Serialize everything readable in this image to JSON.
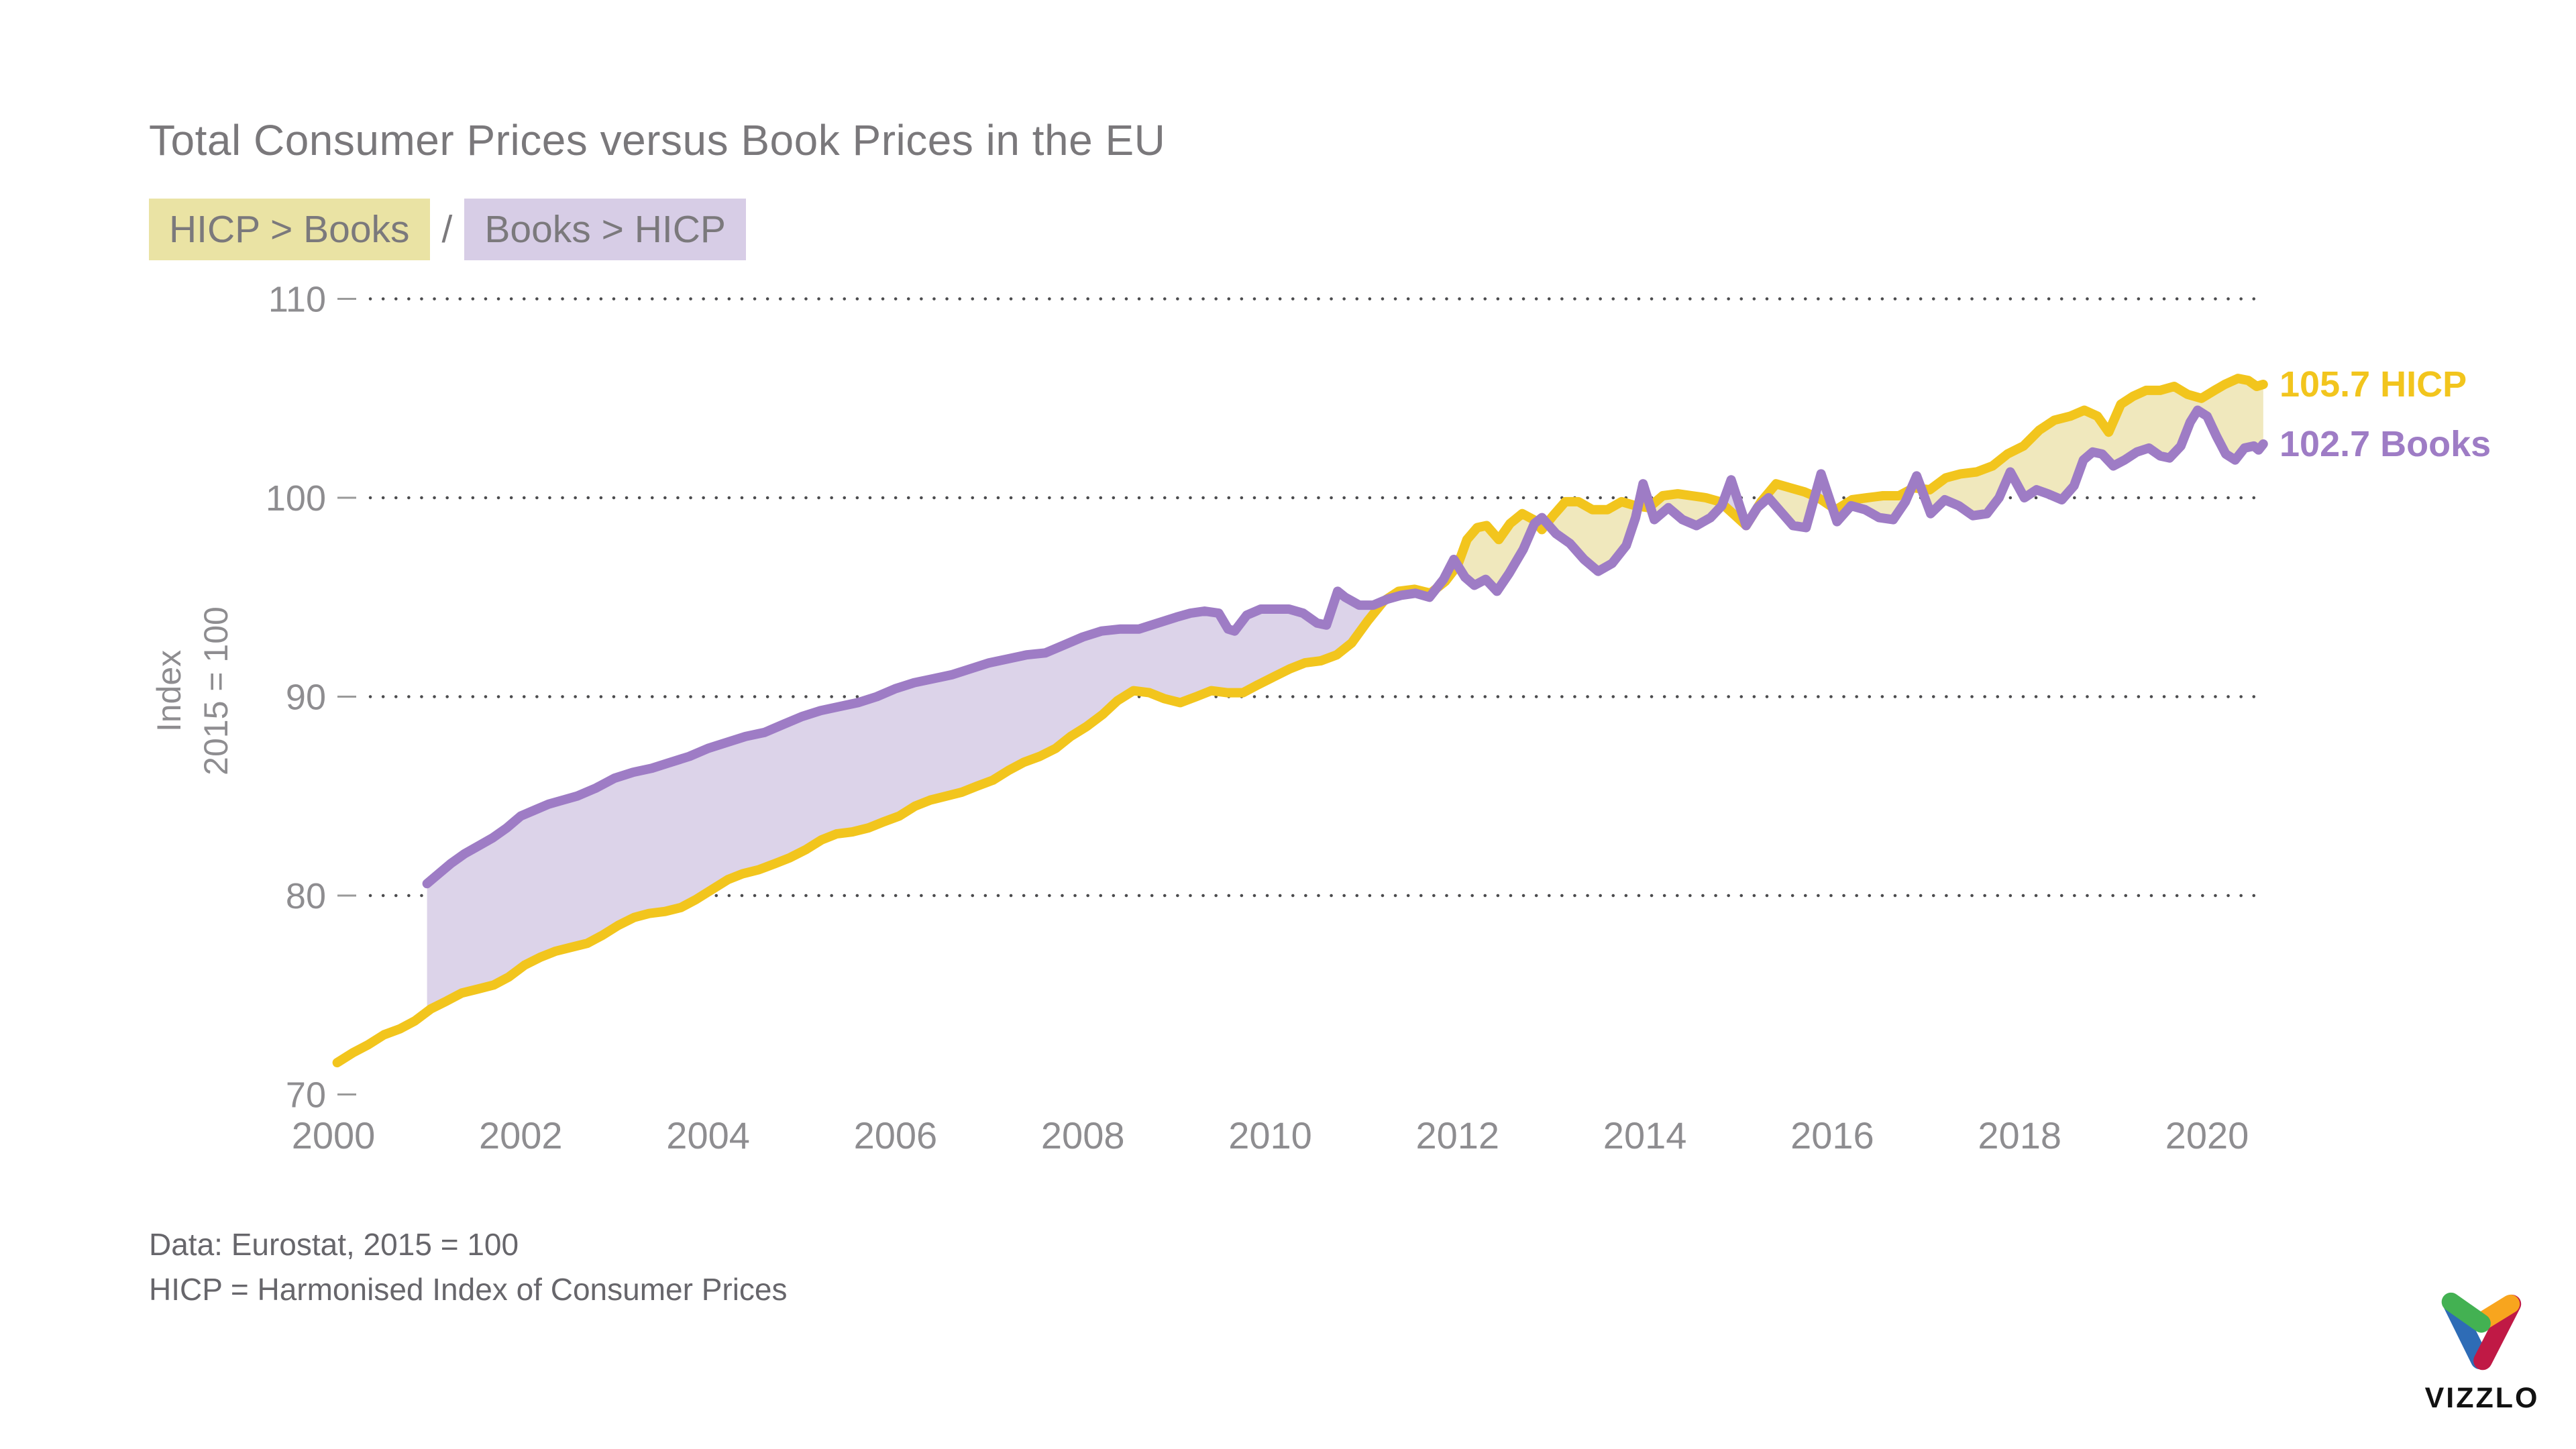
{
  "header": {
    "title": "Total Consumer Prices versus Book Prices in the EU",
    "legend": {
      "hicp_badge": "HICP > Books",
      "separator": "/",
      "books_badge": "Books > HICP"
    }
  },
  "axis": {
    "y_title_line1": "Index",
    "y_title_line2": "2015 = 100"
  },
  "chart_labels": {
    "hicp_end": "105.7 HICP",
    "books_end": "102.7 Books"
  },
  "footer": {
    "line1": "Data: Eurostat, 2015 = 100",
    "line2": "HICP = Harmonised Index of Consumer Prices"
  },
  "logo": {
    "text": "VIZZLO",
    "mark_colors": {
      "green": "#43b152",
      "blue": "#2e6cb6",
      "orange": "#f8a51e",
      "red": "#c01945"
    }
  },
  "colors": {
    "title_gray": "#7a787b",
    "tick_gray": "#8e8d90",
    "footer_gray": "#67666b",
    "grid_dot": "#4b4b4d",
    "axis_dash": "#9a9a9a",
    "hicp_line": "#f2c51d",
    "hicp_fill": "#f0e8bd",
    "books_line": "#9e7cc5",
    "books_fill": "#dcd3e9",
    "badge_hicp_bg": "#eae3a4",
    "badge_books_bg": "#d7cde6"
  },
  "chart_data": {
    "type": "area",
    "title": "Total Consumer Prices versus Book Prices in the EU",
    "xlabel": "",
    "ylabel": "Index 2015 = 100",
    "xlim": [
      2000,
      2020.75
    ],
    "ylim": [
      70,
      110
    ],
    "x_ticks": [
      2000,
      2002,
      2004,
      2006,
      2008,
      2010,
      2012,
      2014,
      2016,
      2018,
      2020
    ],
    "y_ticks": [
      70,
      80,
      90,
      100,
      110
    ],
    "grid": "dotted-horizontal",
    "legend_position": "right-end-labels",
    "fill_rule": "area between series, colored by whichever series is on top",
    "series": [
      {
        "name": "HICP",
        "end_value": 105.7,
        "end_label": "105.7 HICP",
        "points": [
          [
            2000.04,
            71.6
          ],
          [
            2000.21,
            72.1
          ],
          [
            2000.37,
            72.5
          ],
          [
            2000.54,
            73.0
          ],
          [
            2000.71,
            73.3
          ],
          [
            2000.87,
            73.7
          ],
          [
            2001.04,
            74.3
          ],
          [
            2001.21,
            74.7
          ],
          [
            2001.37,
            75.1
          ],
          [
            2001.54,
            75.3
          ],
          [
            2001.71,
            75.5
          ],
          [
            2001.87,
            75.9
          ],
          [
            2002.04,
            76.5
          ],
          [
            2002.21,
            76.9
          ],
          [
            2002.37,
            77.2
          ],
          [
            2002.54,
            77.4
          ],
          [
            2002.71,
            77.6
          ],
          [
            2002.87,
            78.0
          ],
          [
            2003.04,
            78.5
          ],
          [
            2003.21,
            78.9
          ],
          [
            2003.37,
            79.1
          ],
          [
            2003.54,
            79.2
          ],
          [
            2003.71,
            79.4
          ],
          [
            2003.87,
            79.8
          ],
          [
            2004.04,
            80.3
          ],
          [
            2004.21,
            80.8
          ],
          [
            2004.37,
            81.1
          ],
          [
            2004.54,
            81.3
          ],
          [
            2004.71,
            81.6
          ],
          [
            2004.87,
            81.9
          ],
          [
            2005.04,
            82.3
          ],
          [
            2005.21,
            82.8
          ],
          [
            2005.37,
            83.1
          ],
          [
            2005.54,
            83.2
          ],
          [
            2005.71,
            83.4
          ],
          [
            2005.87,
            83.7
          ],
          [
            2006.04,
            84.0
          ],
          [
            2006.21,
            84.5
          ],
          [
            2006.37,
            84.8
          ],
          [
            2006.54,
            85.0
          ],
          [
            2006.71,
            85.2
          ],
          [
            2006.87,
            85.5
          ],
          [
            2007.04,
            85.8
          ],
          [
            2007.21,
            86.3
          ],
          [
            2007.37,
            86.7
          ],
          [
            2007.54,
            87.0
          ],
          [
            2007.71,
            87.4
          ],
          [
            2007.87,
            88.0
          ],
          [
            2008.04,
            88.5
          ],
          [
            2008.21,
            89.1
          ],
          [
            2008.37,
            89.8
          ],
          [
            2008.54,
            90.3
          ],
          [
            2008.71,
            90.2
          ],
          [
            2008.87,
            89.9
          ],
          [
            2009.04,
            89.7
          ],
          [
            2009.21,
            90.0
          ],
          [
            2009.37,
            90.3
          ],
          [
            2009.54,
            90.2
          ],
          [
            2009.71,
            90.2
          ],
          [
            2009.87,
            90.6
          ],
          [
            2010.04,
            91.0
          ],
          [
            2010.21,
            91.4
          ],
          [
            2010.37,
            91.7
          ],
          [
            2010.54,
            91.8
          ],
          [
            2010.71,
            92.1
          ],
          [
            2010.87,
            92.7
          ],
          [
            2011.04,
            93.8
          ],
          [
            2011.21,
            94.8
          ],
          [
            2011.37,
            95.3
          ],
          [
            2011.54,
            95.4
          ],
          [
            2011.71,
            95.2
          ],
          [
            2011.87,
            95.8
          ],
          [
            2012.0,
            96.6
          ],
          [
            2012.1,
            97.9
          ],
          [
            2012.21,
            98.5
          ],
          [
            2012.31,
            98.6
          ],
          [
            2012.44,
            97.9
          ],
          [
            2012.56,
            98.7
          ],
          [
            2012.69,
            99.2
          ],
          [
            2012.81,
            98.9
          ],
          [
            2012.9,
            98.4
          ],
          [
            2013.02,
            99.1
          ],
          [
            2013.15,
            99.8
          ],
          [
            2013.29,
            99.8
          ],
          [
            2013.44,
            99.4
          ],
          [
            2013.6,
            99.4
          ],
          [
            2013.75,
            99.8
          ],
          [
            2013.9,
            99.6
          ],
          [
            2014.04,
            99.5
          ],
          [
            2014.19,
            100.1
          ],
          [
            2014.35,
            100.2
          ],
          [
            2014.5,
            100.1
          ],
          [
            2014.65,
            100.0
          ],
          [
            2014.8,
            99.8
          ],
          [
            2014.94,
            99.2
          ],
          [
            2015.08,
            98.6
          ],
          [
            2015.24,
            99.8
          ],
          [
            2015.4,
            100.7
          ],
          [
            2015.55,
            100.5
          ],
          [
            2015.7,
            100.3
          ],
          [
            2015.85,
            100.0
          ],
          [
            2016.04,
            99.4
          ],
          [
            2016.21,
            99.9
          ],
          [
            2016.37,
            100.0
          ],
          [
            2016.54,
            100.1
          ],
          [
            2016.71,
            100.1
          ],
          [
            2016.87,
            100.5
          ],
          [
            2017.04,
            100.4
          ],
          [
            2017.21,
            101.0
          ],
          [
            2017.37,
            101.2
          ],
          [
            2017.54,
            101.3
          ],
          [
            2017.71,
            101.6
          ],
          [
            2017.87,
            102.2
          ],
          [
            2018.04,
            102.6
          ],
          [
            2018.21,
            103.4
          ],
          [
            2018.37,
            103.9
          ],
          [
            2018.54,
            104.1
          ],
          [
            2018.69,
            104.4
          ],
          [
            2018.83,
            104.1
          ],
          [
            2018.95,
            103.3
          ],
          [
            2019.08,
            104.7
          ],
          [
            2019.21,
            105.1
          ],
          [
            2019.35,
            105.4
          ],
          [
            2019.5,
            105.4
          ],
          [
            2019.65,
            105.6
          ],
          [
            2019.79,
            105.2
          ],
          [
            2019.94,
            105.0
          ],
          [
            2020.08,
            105.4
          ],
          [
            2020.19,
            105.7
          ],
          [
            2020.33,
            106.0
          ],
          [
            2020.44,
            105.9
          ],
          [
            2020.53,
            105.6
          ],
          [
            2020.6,
            105.7
          ]
        ]
      },
      {
        "name": "Books",
        "end_value": 102.7,
        "end_label": "102.7 Books",
        "points": [
          [
            2001.0,
            80.6
          ],
          [
            2001.1,
            81.0
          ],
          [
            2001.25,
            81.6
          ],
          [
            2001.4,
            82.1
          ],
          [
            2001.55,
            82.5
          ],
          [
            2001.7,
            82.9
          ],
          [
            2001.85,
            83.4
          ],
          [
            2002.0,
            84.0
          ],
          [
            2002.15,
            84.3
          ],
          [
            2002.3,
            84.6
          ],
          [
            2002.45,
            84.8
          ],
          [
            2002.6,
            85.0
          ],
          [
            2002.8,
            85.4
          ],
          [
            2003.0,
            85.9
          ],
          [
            2003.2,
            86.2
          ],
          [
            2003.4,
            86.4
          ],
          [
            2003.6,
            86.7
          ],
          [
            2003.8,
            87.0
          ],
          [
            2004.0,
            87.4
          ],
          [
            2004.2,
            87.7
          ],
          [
            2004.4,
            88.0
          ],
          [
            2004.6,
            88.2
          ],
          [
            2004.8,
            88.6
          ],
          [
            2005.0,
            89.0
          ],
          [
            2005.2,
            89.3
          ],
          [
            2005.4,
            89.5
          ],
          [
            2005.6,
            89.7
          ],
          [
            2005.8,
            90.0
          ],
          [
            2006.0,
            90.4
          ],
          [
            2006.2,
            90.7
          ],
          [
            2006.4,
            90.9
          ],
          [
            2006.6,
            91.1
          ],
          [
            2006.8,
            91.4
          ],
          [
            2007.0,
            91.7
          ],
          [
            2007.2,
            91.9
          ],
          [
            2007.4,
            92.1
          ],
          [
            2007.6,
            92.2
          ],
          [
            2007.8,
            92.6
          ],
          [
            2008.0,
            93.0
          ],
          [
            2008.2,
            93.3
          ],
          [
            2008.4,
            93.4
          ],
          [
            2008.6,
            93.4
          ],
          [
            2008.8,
            93.7
          ],
          [
            2009.0,
            94.0
          ],
          [
            2009.15,
            94.2
          ],
          [
            2009.3,
            94.3
          ],
          [
            2009.45,
            94.2
          ],
          [
            2009.55,
            93.4
          ],
          [
            2009.62,
            93.3
          ],
          [
            2009.75,
            94.1
          ],
          [
            2009.9,
            94.4
          ],
          [
            2010.04,
            94.4
          ],
          [
            2010.2,
            94.4
          ],
          [
            2010.35,
            94.2
          ],
          [
            2010.5,
            93.7
          ],
          [
            2010.6,
            93.6
          ],
          [
            2010.72,
            95.3
          ],
          [
            2010.8,
            95.0
          ],
          [
            2010.95,
            94.6
          ],
          [
            2011.1,
            94.6
          ],
          [
            2011.25,
            94.9
          ],
          [
            2011.4,
            95.1
          ],
          [
            2011.55,
            95.2
          ],
          [
            2011.7,
            95.0
          ],
          [
            2011.85,
            95.9
          ],
          [
            2011.96,
            96.9
          ],
          [
            2012.08,
            96.0
          ],
          [
            2012.18,
            95.6
          ],
          [
            2012.3,
            95.9
          ],
          [
            2012.42,
            95.3
          ],
          [
            2012.55,
            96.2
          ],
          [
            2012.7,
            97.4
          ],
          [
            2012.82,
            98.7
          ],
          [
            2012.9,
            99.0
          ],
          [
            2013.05,
            98.2
          ],
          [
            2013.2,
            97.7
          ],
          [
            2013.35,
            96.9
          ],
          [
            2013.5,
            96.3
          ],
          [
            2013.65,
            96.7
          ],
          [
            2013.8,
            97.6
          ],
          [
            2013.9,
            99.0
          ],
          [
            2013.98,
            100.7
          ],
          [
            2014.1,
            98.9
          ],
          [
            2014.25,
            99.5
          ],
          [
            2014.4,
            98.9
          ],
          [
            2014.55,
            98.6
          ],
          [
            2014.7,
            99.0
          ],
          [
            2014.82,
            99.6
          ],
          [
            2014.92,
            100.9
          ],
          [
            2015.08,
            98.6
          ],
          [
            2015.2,
            99.5
          ],
          [
            2015.32,
            100.0
          ],
          [
            2015.45,
            99.3
          ],
          [
            2015.58,
            98.6
          ],
          [
            2015.72,
            98.5
          ],
          [
            2015.88,
            101.2
          ],
          [
            2016.05,
            98.8
          ],
          [
            2016.2,
            99.6
          ],
          [
            2016.35,
            99.4
          ],
          [
            2016.5,
            99.0
          ],
          [
            2016.65,
            98.9
          ],
          [
            2016.78,
            99.8
          ],
          [
            2016.9,
            101.1
          ],
          [
            2017.05,
            99.2
          ],
          [
            2017.2,
            99.9
          ],
          [
            2017.35,
            99.6
          ],
          [
            2017.5,
            99.1
          ],
          [
            2017.65,
            99.2
          ],
          [
            2017.78,
            100.0
          ],
          [
            2017.9,
            101.3
          ],
          [
            2018.05,
            100.0
          ],
          [
            2018.18,
            100.4
          ],
          [
            2018.3,
            100.2
          ],
          [
            2018.45,
            99.9
          ],
          [
            2018.58,
            100.6
          ],
          [
            2018.68,
            101.9
          ],
          [
            2018.78,
            102.3
          ],
          [
            2018.88,
            102.2
          ],
          [
            2019.0,
            101.6
          ],
          [
            2019.12,
            101.9
          ],
          [
            2019.25,
            102.3
          ],
          [
            2019.38,
            102.5
          ],
          [
            2019.5,
            102.1
          ],
          [
            2019.6,
            102.0
          ],
          [
            2019.72,
            102.6
          ],
          [
            2019.82,
            103.8
          ],
          [
            2019.9,
            104.4
          ],
          [
            2020.0,
            104.1
          ],
          [
            2020.1,
            103.1
          ],
          [
            2020.2,
            102.2
          ],
          [
            2020.3,
            101.9
          ],
          [
            2020.4,
            102.5
          ],
          [
            2020.5,
            102.6
          ],
          [
            2020.55,
            102.4
          ],
          [
            2020.6,
            102.7
          ]
        ]
      }
    ]
  }
}
